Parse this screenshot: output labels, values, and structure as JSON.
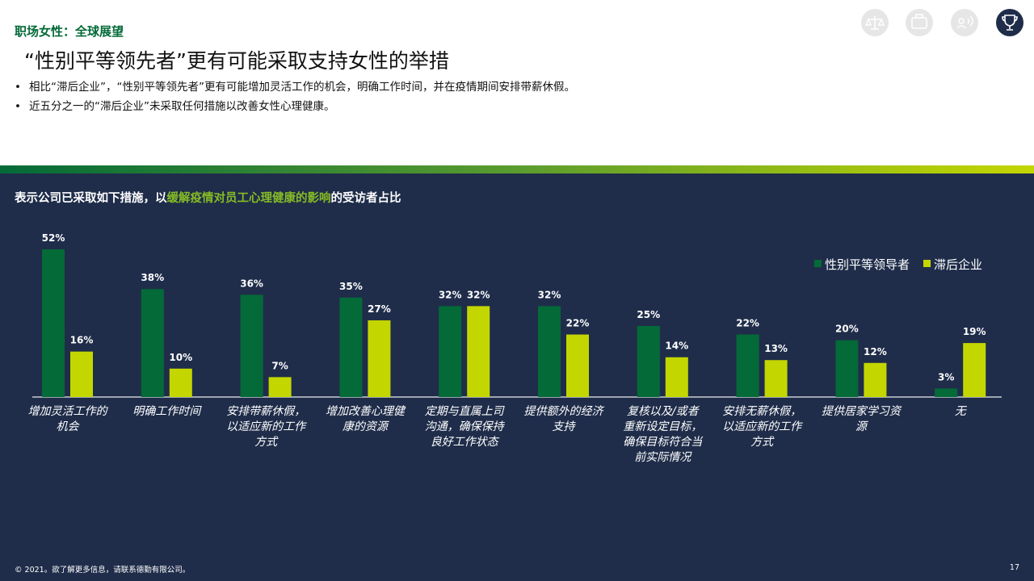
{
  "header": {
    "section": "职场女性：全球展望",
    "title": "“性别平等领先者”更有可能采取支持女性的举措",
    "bullets": [
      "相比“滞后企业”，“性别平等领先者”更有可能增加灵活工作的机会，明确工作时间，并在疫情期间安排带薪休假。",
      "近五分之一的“滞后企业”未采取任何措施以改善女性心理健康。"
    ]
  },
  "chart_data": {
    "type": "bar",
    "title_parts": [
      "表示公司已采取如下措施，以",
      "缓解疫情对员工心理健康的影响",
      "的受访者占比"
    ],
    "categories": [
      "增加灵活工作的机会",
      "明确工作时间",
      "安排带薪休假，以适应新的工作方式",
      "增加改善心理健康的资源",
      "定期与直属上司沟通，确保保持良好工作状态",
      "提供额外的经济支持",
      "复核以及/或者重新设定目标，确保目标符合当前实际情况",
      "安排无薪休假，以适应新的工作方式",
      "提供居家学习资源",
      "无"
    ],
    "series": [
      {
        "name": "性别平等领导者",
        "color": "#046a38",
        "values": [
          52,
          38,
          36,
          35,
          32,
          32,
          25,
          22,
          20,
          3
        ],
        "value_labels": [
          "52%",
          "38%",
          "36%",
          "35%",
          "32%",
          "32%",
          "25%",
          "22%",
          "20%",
          "3%"
        ]
      },
      {
        "name": "滞后企业",
        "color": "#c4d600",
        "values": [
          16,
          10,
          7,
          27,
          32,
          22,
          14,
          13,
          12,
          19
        ],
        "value_labels": [
          "16%",
          "10%",
          "7%",
          "27%",
          "32%",
          "22%",
          "14%",
          "13%",
          "12%",
          "19%"
        ]
      }
    ],
    "legend": "top-right"
  },
  "footer": {
    "copyright": "© 2021。欲了解更多信息，请联系德勤有限公司。",
    "page": "17"
  }
}
